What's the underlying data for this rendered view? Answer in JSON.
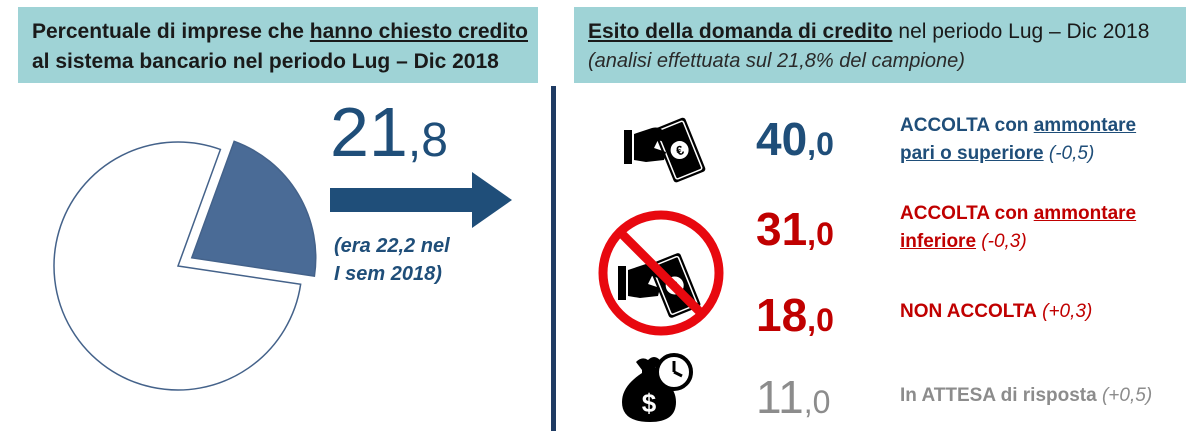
{
  "left_panel": {
    "title_part1": "Percentuale di imprese che ",
    "title_underlined": "hanno chiesto credito",
    "title_line2": "al sistema bancario nel periodo Lug – Dic 2018",
    "value_int": "21",
    "value_dec": ",8",
    "note_line1": "(era 22,2 nel",
    "note_line2": "I sem 2018)"
  },
  "right_panel": {
    "title_underlined": "Esito della domanda di credito",
    "title_rest": " nel periodo Lug – Dic 2018",
    "subtitle": "(analisi effettuata sul 21,8% del campione)"
  },
  "outcomes": [
    {
      "value_int": "40",
      "value_dec": ",0",
      "label_a": "ACCOLTA con ",
      "label_b": "ammontare",
      "label_c": "pari o superiore",
      "change": " (-0,5)",
      "color": "#1f4e79",
      "icon": "hand-money-icon"
    },
    {
      "value_int": "31",
      "value_dec": ",0",
      "label_a": "ACCOLTA con ",
      "label_b": "ammontare",
      "label_c": "inferiore",
      "change": " (-0,3)",
      "color": "#c00000",
      "icon": "no-money-icon"
    },
    {
      "value_int": "18",
      "value_dec": ",0",
      "label_a": "NON ACCOLTA",
      "change": " (+0,3)",
      "color": "#c00000"
    },
    {
      "value_int": "11",
      "value_dec": ",0",
      "label_a": "In ATTESA di risposta",
      "change": " (+0,5)",
      "color": "#8c8c8c",
      "icon": "money-bag-clock-icon"
    }
  ],
  "colors": {
    "header_bg": "#9fd3d6",
    "pie_slice": "#4a6b96",
    "arrow": "#1f4e79"
  },
  "chart_data": {
    "type": "pie",
    "title": "Percentuale di imprese che hanno chiesto credito al sistema bancario nel periodo Lug – Dic 2018",
    "categories": [
      "hanno chiesto credito",
      ""
    ],
    "values": [
      21.8,
      78.2
    ]
  }
}
